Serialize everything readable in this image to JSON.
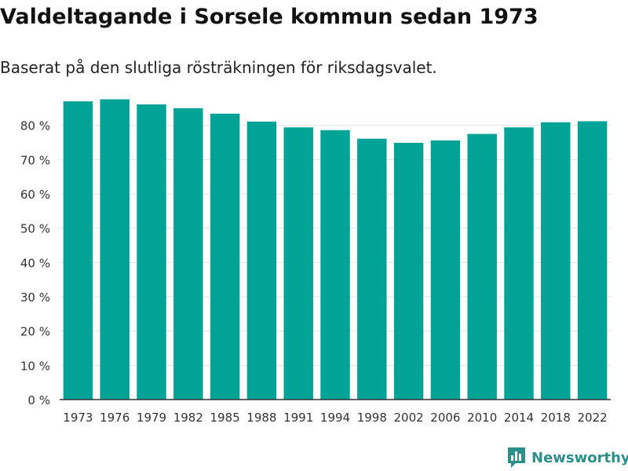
{
  "header": {
    "title": "Valdeltagande i Sorsele kommun sedan 1973",
    "subtitle": "Baserat på den slutliga rösträkningen för riksdagsvalet."
  },
  "branding": {
    "logo_text": "Newsworthy",
    "logo_icon": "bar-chart-speech-bubble-icon",
    "logo_color": "#2c8f8a"
  },
  "colors": {
    "bar": "#00a396",
    "grid": "#e3e3e3",
    "axis": "#333333",
    "tick_text": "#333333"
  },
  "chart_data": {
    "type": "bar",
    "title": "Valdeltagande i Sorsele kommun sedan 1973",
    "subtitle": "Baserat på den slutliga rösträkningen för riksdagsvalet.",
    "xlabel": "",
    "ylabel": "",
    "categories": [
      "1973",
      "1976",
      "1979",
      "1982",
      "1985",
      "1988",
      "1991",
      "1994",
      "1998",
      "2002",
      "2006",
      "2010",
      "2014",
      "2018",
      "2022"
    ],
    "values": [
      87.0,
      87.6,
      86.1,
      85.0,
      83.4,
      81.1,
      79.4,
      78.6,
      76.1,
      74.9,
      75.6,
      77.5,
      79.4,
      80.9,
      81.2
    ],
    "ylim": [
      0,
      90
    ],
    "yticks": [
      0,
      10,
      20,
      30,
      40,
      50,
      60,
      70,
      80
    ],
    "ytick_labels": [
      "0 %",
      "10 %",
      "20 %",
      "30 %",
      "40 %",
      "50 %",
      "60 %",
      "70 %",
      "80 %"
    ],
    "grid": true,
    "legend": "none"
  }
}
